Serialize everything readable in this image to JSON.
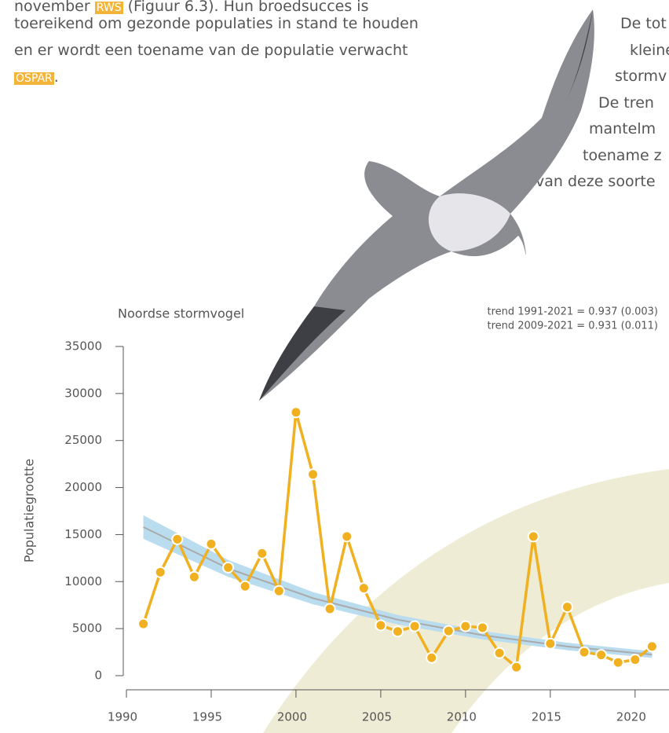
{
  "text": {
    "left_lines": [
      [
        "november ",
        "RWS",
        " (Figuur 6.3). Hun broedsucces is"
      ],
      [
        "toereikend om gezonde populaties in stand te houden"
      ],
      [
        "en er wordt een toename van de populatie verwacht"
      ],
      [
        "OSPAR",
        "."
      ]
    ],
    "right_lines": [
      "De tot",
      "kleine",
      "stormv",
      "De tren",
      "mantelm",
      "toename z",
      "van deze soorte"
    ]
  },
  "chart_data": {
    "type": "line",
    "title": "Noordse stormvogel",
    "annotations": [
      "trend 1991-2021 = 0.937 (0.003)",
      "trend 2009-2021 = 0.931 (0.011)"
    ],
    "ylabel": "Populatiegrootte",
    "x": [
      1991,
      1992,
      1993,
      1994,
      1995,
      1996,
      1997,
      1998,
      1999,
      2000,
      2001,
      2002,
      2003,
      2004,
      2005,
      2006,
      2007,
      2008,
      2009,
      2010,
      2011,
      2012,
      2013,
      2014,
      2015,
      2016,
      2017,
      2018,
      2019,
      2020,
      2021
    ],
    "series": [
      {
        "color": "#f0b020",
        "values": [
          5500,
          11000,
          14500,
          10500,
          14000,
          11500,
          9500,
          13000,
          9000,
          28000,
          21400,
          7100,
          14800,
          9300,
          5350,
          4700,
          5250,
          1900,
          4750,
          5250,
          5100,
          2400,
          900,
          14800,
          3400,
          7300,
          2500,
          2200,
          1400,
          1700,
          3100
        ]
      }
    ],
    "trend": {
      "color": "#aaaaaa",
      "band_color": "#b9dcee",
      "x": [
        1991,
        1996,
        2001,
        2006,
        2011,
        2016,
        2021
      ],
      "values": [
        15800,
        11400,
        8240,
        5950,
        4300,
        3100,
        2240
      ],
      "lower": [
        14550,
        10500,
        7590,
        5450,
        3850,
        2700,
        1890
      ],
      "upper": [
        17050,
        12300,
        8890,
        6450,
        4750,
        3500,
        2590
      ]
    },
    "xlim": [
      1990,
      2022
    ],
    "ylim": [
      0,
      35000
    ],
    "xticks": [
      1990,
      1995,
      2000,
      2005,
      2010,
      2015,
      2020
    ],
    "yticks": [
      0,
      5000,
      10000,
      15000,
      20000,
      25000,
      30000,
      35000
    ]
  }
}
